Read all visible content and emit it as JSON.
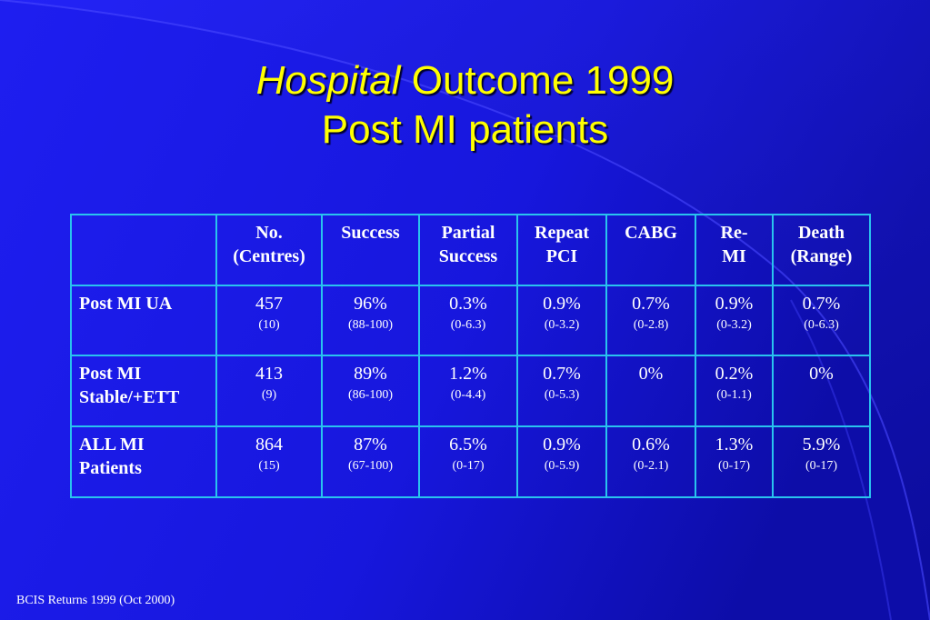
{
  "slide": {
    "title_italic": "Hospital",
    "title_rest": " Outcome 1999",
    "subtitle": "Post MI patients",
    "footer": "BCIS Returns 1999 (Oct 2000)"
  },
  "table": {
    "headers": {
      "c0": "",
      "c1_l1": "No.",
      "c1_l2": "(Centres)",
      "c2_l1": "Success",
      "c3_l1": "Partial",
      "c3_l2": "Success",
      "c4_l1": "Repeat",
      "c4_l2": "PCI",
      "c5_l1": "CABG",
      "c6_l1": "Re-",
      "c6_l2": "MI",
      "c7_l1": "Death",
      "c7_l2": "(Range)"
    },
    "rows": [
      {
        "label_l1": "Post MI UA",
        "label_l2": "",
        "cells": [
          {
            "main": "457",
            "sub": "(10)"
          },
          {
            "main": "96%",
            "sub": "(88-100)"
          },
          {
            "main": "0.3%",
            "sub": "(0-6.3)"
          },
          {
            "main": "0.9%",
            "sub": "(0-3.2)"
          },
          {
            "main": "0.7%",
            "sub": "(0-2.8)"
          },
          {
            "main": "0.9%",
            "sub": "(0-3.2)"
          },
          {
            "main": "0.7%",
            "sub": "(0-6.3)"
          }
        ]
      },
      {
        "label_l1": "Post MI",
        "label_l2": "Stable/+ETT",
        "cells": [
          {
            "main": "413",
            "sub": "(9)"
          },
          {
            "main": "89%",
            "sub": "(86-100)"
          },
          {
            "main": "1.2%",
            "sub": "(0-4.4)"
          },
          {
            "main": "0.7%",
            "sub": "(0-5.3)"
          },
          {
            "main": "0%",
            "sub": ""
          },
          {
            "main": "0.2%",
            "sub": "(0-1.1)"
          },
          {
            "main": "0%",
            "sub": ""
          }
        ]
      },
      {
        "label_l1": "ALL MI",
        "label_l2": "Patients",
        "cells": [
          {
            "main": "864",
            "sub": "(15)"
          },
          {
            "main": "87%",
            "sub": "(67-100)"
          },
          {
            "main": "6.5%",
            "sub": "(0-17)"
          },
          {
            "main": "0.9%",
            "sub": "(0-5.9)"
          },
          {
            "main": "0.6%",
            "sub": "(0-2.1)"
          },
          {
            "main": "1.3%",
            "sub": "(0-17)"
          },
          {
            "main": "5.9%",
            "sub": "(0-17)"
          }
        ]
      }
    ]
  },
  "colors": {
    "background": "#1a1ae6",
    "title": "#ffff00",
    "text": "#ffffff",
    "table_border": "#29c3ee"
  }
}
